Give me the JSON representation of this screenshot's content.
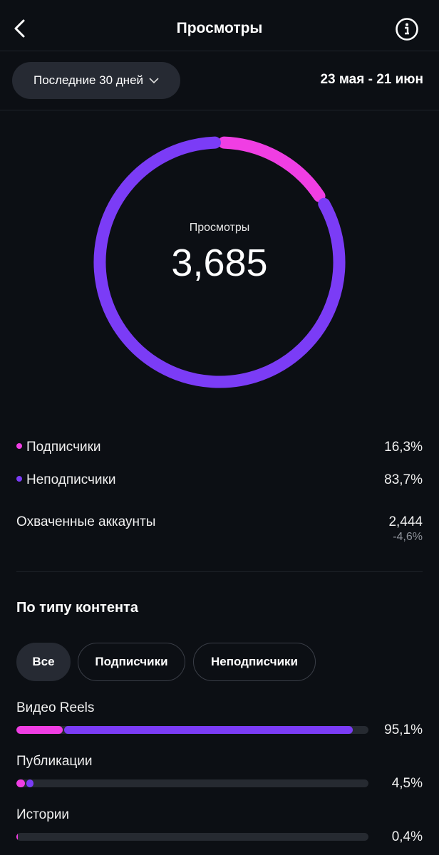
{
  "header": {
    "title": "Просмотры",
    "back_icon": "chevron-left-icon",
    "info_icon": "info-icon"
  },
  "filter": {
    "period": "Последние 30 дней",
    "range": "23 мая - 21 июн"
  },
  "colors": {
    "followers": "#f03ee3",
    "non_followers": "#7b3cf6",
    "track": "#262a31"
  },
  "summary": {
    "label": "Просмотры",
    "value": "3,685",
    "followers_share": 16.3
  },
  "breakdown": [
    {
      "label": "Подписчики",
      "value": "16,3%"
    },
    {
      "label": "Неподписчики",
      "value": "83,7%"
    }
  ],
  "reach": {
    "label": "Охваченные аккаунты",
    "value": "2,444",
    "change": "-4,6%"
  },
  "content": {
    "title": "По типу контента",
    "chips": [
      {
        "label": "Все",
        "active": true
      },
      {
        "label": "Подписчики"
      },
      {
        "label": "Неподписчики"
      }
    ],
    "items": [
      {
        "label": "Видео Reels",
        "value": "95,1%",
        "followers": 13.2,
        "non_followers": 81.9
      },
      {
        "label": "Публикации",
        "value": "4,5%",
        "followers": 2.5,
        "non_followers": 2.0
      },
      {
        "label": "Истории",
        "value": "0,4%",
        "followers": 0.4,
        "non_followers": 0
      }
    ]
  }
}
